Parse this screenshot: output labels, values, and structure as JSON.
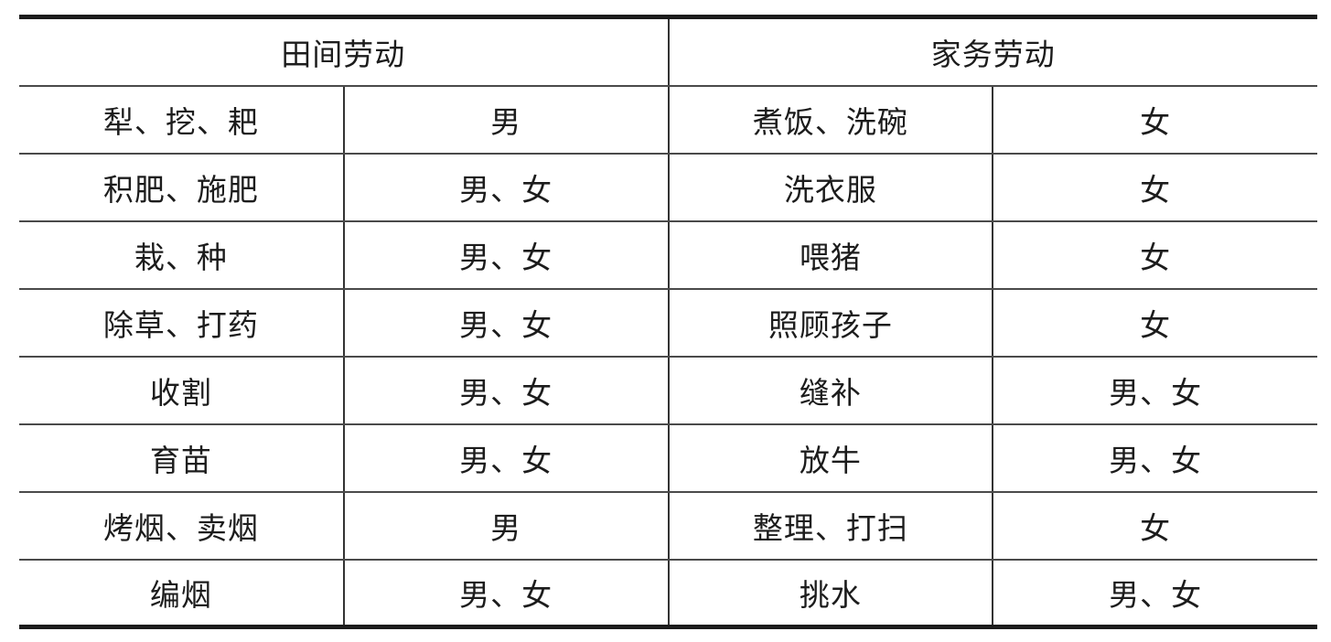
{
  "colors": {
    "text": "#1c1c1c",
    "border_heavy": "#1c1c1c",
    "border_light": "#4a4a4a"
  },
  "table": {
    "sections": [
      {
        "header": "田间劳动",
        "rows": [
          {
            "task": "犁、挖、耙",
            "who": "男"
          },
          {
            "task": "积肥、施肥",
            "who": "男、女"
          },
          {
            "task": "栽、种",
            "who": "男、女"
          },
          {
            "task": "除草、打药",
            "who": "男、女"
          },
          {
            "task": "收割",
            "who": "男、女"
          },
          {
            "task": "育苗",
            "who": "男、女"
          },
          {
            "task": "烤烟、卖烟",
            "who": "男"
          },
          {
            "task": "编烟",
            "who": "男、女"
          }
        ]
      },
      {
        "header": "家务劳动",
        "rows": [
          {
            "task": "煮饭、洗碗",
            "who": "女"
          },
          {
            "task": "洗衣服",
            "who": "女"
          },
          {
            "task": "喂猪",
            "who": "女"
          },
          {
            "task": "照顾孩子",
            "who": "女"
          },
          {
            "task": "缝补",
            "who": "男、女"
          },
          {
            "task": "放牛",
            "who": "男、女"
          },
          {
            "task": "整理、打扫",
            "who": "女"
          },
          {
            "task": "挑水",
            "who": "男、女"
          }
        ]
      }
    ]
  }
}
